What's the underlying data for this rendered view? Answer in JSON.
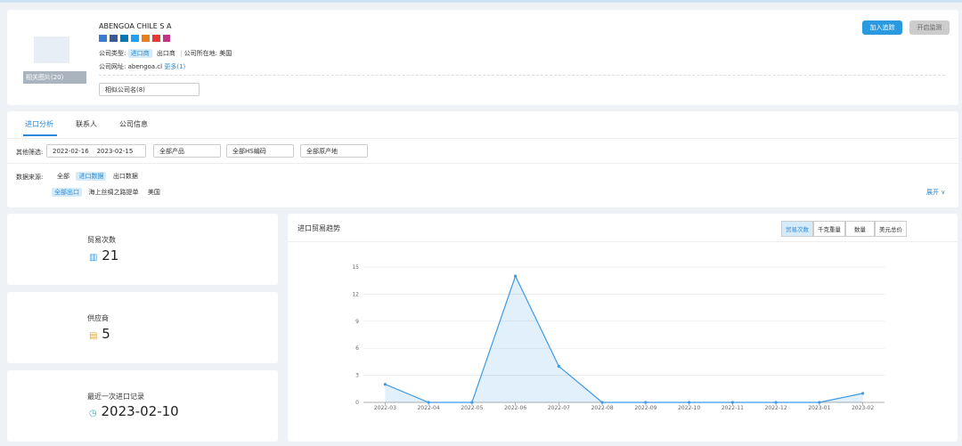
{
  "header": {
    "company": "ABENGOA CHILE S A",
    "company_type_label": "公司类型:",
    "types": [
      "进口商",
      "出口商"
    ],
    "location_label": "公司所在地:",
    "location": "美国",
    "website_label": "公司网址:",
    "website": "abengoa.cl",
    "more": "更多(1)",
    "similar": "相似公司名(8)",
    "photos": "相关图片(20)",
    "buttons": [
      "加入追踪",
      "开启监测"
    ]
  },
  "tabs": [
    "进口分析",
    "联系人",
    "公司信息"
  ],
  "filters": {
    "label": "其他筛选:",
    "date_from": "2022-02-16",
    "date_to": "2023-02-15",
    "selects": [
      "全部产品",
      "全部HS编码",
      "全部原产地"
    ]
  },
  "source": {
    "label": "数据来源:",
    "options": [
      "全部",
      "进口数据",
      "出口数据"
    ],
    "sub": [
      "全部出口",
      "海上丝绸之路提单",
      "美国"
    ],
    "expand": "展开"
  },
  "stats": [
    {
      "label": "贸易次数",
      "value": 21
    },
    {
      "label": "供应商",
      "value": 5
    },
    {
      "label": "最近一次进口记录",
      "value": "2023-02-10"
    }
  ],
  "chart_data": {
    "type": "line",
    "title": "进口贸易趋势",
    "toggles": [
      "贸易次数",
      "千克重量",
      "数量",
      "美元总价"
    ],
    "categories": [
      "2022-03",
      "2022-04",
      "2022-05",
      "2022-06",
      "2022-07",
      "2022-08",
      "2022-09",
      "2022-10",
      "2022-11",
      "2022-12",
      "2023-01",
      "2023-02"
    ],
    "values": [
      2,
      0,
      0,
      14,
      4,
      0,
      0,
      0,
      0,
      0,
      0,
      1
    ],
    "color": "#3f9be6",
    "ylim": [
      0,
      15
    ],
    "yticks": [
      0,
      3,
      6,
      9,
      12,
      15
    ],
    "grid": true,
    "area": true
  }
}
